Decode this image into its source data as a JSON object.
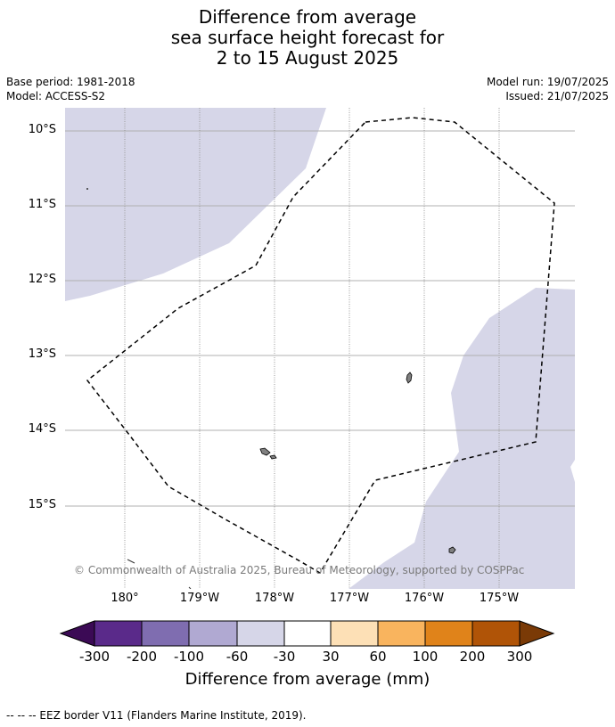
{
  "title": {
    "line1": "Difference from average",
    "line2": "sea surface height forecast for",
    "line3": "2 to 15 August 2025"
  },
  "meta": {
    "base_period": "Base period: 1981-2018",
    "model": "Model: ACCESS-S2",
    "model_run": "Model run: 19/07/2025",
    "issued": "Issued: 21/07/2025"
  },
  "map": {
    "lat_labels": [
      "10°S",
      "11°S",
      "12°S",
      "13°S",
      "14°S",
      "15°S"
    ],
    "lon_labels": [
      "180°",
      "179°W",
      "178°W",
      "177°W",
      "176°W",
      "175°W"
    ],
    "copyright": "© Commonwealth of Australia 2025, Bureau of Meteorology, supported by COSPPac",
    "colors": {
      "anomaly_fill": "#d6d6e8",
      "gridline": "#b0b0b0",
      "land": "#808080",
      "eez_border": "#000000"
    }
  },
  "colorbar": {
    "ticks": [
      "-300",
      "-200",
      "-100",
      "-60",
      "-30",
      "30",
      "60",
      "100",
      "200",
      "300"
    ],
    "colors": [
      "#3b0a55",
      "#5a2a8a",
      "#7f6db0",
      "#b0a9d2",
      "#d6d6e8",
      "#ffffff",
      "#fde0b6",
      "#f9b45e",
      "#e0831a",
      "#b05407",
      "#7a3a06"
    ],
    "label": "Difference from average (mm)"
  },
  "footnote": "--  --  -- EEZ border V11 (Flanders Marine Institute, 2019)."
}
